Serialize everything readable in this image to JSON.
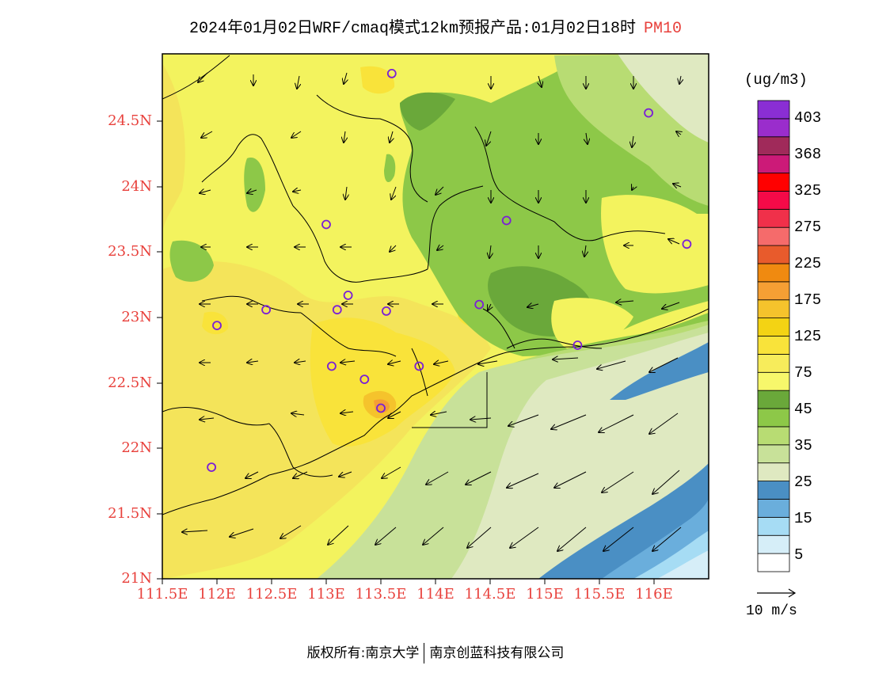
{
  "header": {
    "title": "2024年01月02日WRF/cmaq模式12km预报产品:01月02日18时",
    "pollutant": "PM10"
  },
  "map": {
    "lat_labels": [
      "24.5N",
      "24N",
      "23.5N",
      "23N",
      "22.5N",
      "22N",
      "21.5N",
      "21N"
    ],
    "lon_labels": [
      "111.5E",
      "112E",
      "112.5E",
      "113E",
      "113.5E",
      "114E",
      "114.5E",
      "115E",
      "115.5E",
      "116E"
    ],
    "lat_range": [
      21.0,
      25.0
    ],
    "lon_range": [
      111.5,
      116.5
    ],
    "station_markers": [
      {
        "lon": 113.6,
        "lat": 24.85
      },
      {
        "lon": 115.95,
        "lat": 24.55
      },
      {
        "lon": 113.0,
        "lat": 23.7
      },
      {
        "lon": 114.65,
        "lat": 23.73
      },
      {
        "lon": 116.3,
        "lat": 23.55
      },
      {
        "lon": 113.2,
        "lat": 23.16
      },
      {
        "lon": 112.45,
        "lat": 23.05
      },
      {
        "lon": 113.1,
        "lat": 23.05
      },
      {
        "lon": 113.55,
        "lat": 23.04
      },
      {
        "lon": 114.4,
        "lat": 23.09
      },
      {
        "lon": 112.0,
        "lat": 22.93
      },
      {
        "lon": 115.3,
        "lat": 22.78
      },
      {
        "lon": 113.05,
        "lat": 22.62
      },
      {
        "lon": 113.85,
        "lat": 22.62
      },
      {
        "lon": 113.35,
        "lat": 22.52
      },
      {
        "lon": 113.5,
        "lat": 22.3
      },
      {
        "lon": 111.95,
        "lat": 21.85
      }
    ]
  },
  "colorbar": {
    "unit": "(ug/m3)",
    "colors": [
      "#ffffff",
      "#d6eef8",
      "#a6dcf4",
      "#6aaedc",
      "#4a8fc4",
      "#dfe9c1",
      "#c8e199",
      "#b8dc73",
      "#8dc848",
      "#6aa83a",
      "#f7f76b",
      "#f7ec5b",
      "#f9e33a",
      "#f3d314",
      "#f5c32c",
      "#f59f34",
      "#f08a10",
      "#e85b2c",
      "#f56b6b",
      "#f0304a",
      "#f50a48",
      "#ff0000",
      "#cc1a78",
      "#a02a5a",
      "#9a2dcc",
      "#8a2ed4"
    ],
    "labels": [
      "5",
      "15",
      "25",
      "35",
      "45",
      "75",
      "125",
      "175",
      "225",
      "275",
      "325",
      "368",
      "403"
    ]
  },
  "wind_scale": {
    "label": "10 m/s"
  },
  "footer": {
    "copyright": "版权所有:南京大学",
    "company": "南京创蓝科技有限公司"
  }
}
